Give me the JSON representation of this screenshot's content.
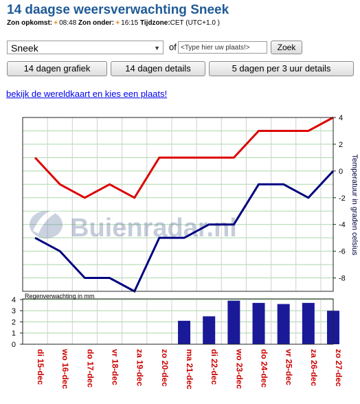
{
  "page": {
    "title": "14 daagse weersverwachting Sneek",
    "sun": {
      "rise_label": "Zon opkomst:",
      "rise_time": "08:48",
      "set_label": "Zon onder:",
      "set_time": "16:15",
      "tz_label": "Tijdzone:",
      "tz_value": "CET (UTC+1.0 )"
    }
  },
  "search": {
    "location": "Sneek",
    "of_label": "of",
    "placeholder": "<Type hier uw plaats!>",
    "button_label": "Zoek"
  },
  "tabs": [
    {
      "label": "14 dagen grafiek"
    },
    {
      "label": "14 dagen details"
    },
    {
      "label": "5 dagen per 3 uur details"
    }
  ],
  "map_link": "bekijk de wereldkaart en kies een plaats!",
  "watermark": "Buienradar.nl",
  "colors": {
    "max_line": "#dd0000",
    "min_line": "#000080",
    "bars": "#1a1a99",
    "date_labels": "#cc0000",
    "grid": "#a8d8a8",
    "title": "#1f5a96"
  },
  "chart_data": [
    {
      "type": "line",
      "ylabel": "Temperatuur in graden celsius",
      "ylim": [
        -9,
        4
      ],
      "yticks": [
        4,
        2,
        0,
        -2,
        -4,
        -6,
        -8
      ],
      "categories": [
        "di 15-dec",
        "wo 16-dec",
        "do 17-dec",
        "vr 18-dec",
        "za 19-dec",
        "zo 20-dec",
        "ma 21-dec",
        "di 22-dec",
        "wo 23-dec",
        "do 24-dec",
        "vr 25-dec",
        "za 26-dec",
        "zo 27-dec"
      ],
      "series": [
        {
          "values": [
            1,
            -1,
            -2,
            -1,
            -2,
            1,
            1,
            1,
            1,
            3,
            3,
            3,
            4
          ]
        },
        {
          "values": [
            -5,
            -6,
            -8,
            -8,
            -9,
            -5,
            -5,
            -4,
            -4,
            -1,
            -1,
            -2,
            0
          ]
        }
      ],
      "grid": true
    },
    {
      "type": "bar",
      "title": "Regenverwachting in mm",
      "ylim": [
        0,
        4
      ],
      "yticks": [
        4,
        3,
        2,
        1,
        0
      ],
      "categories": [
        "di 15-dec",
        "wo 16-dec",
        "do 17-dec",
        "vr 18-dec",
        "za 19-dec",
        "zo 20-dec",
        "ma 21-dec",
        "di 22-dec",
        "wo 23-dec",
        "do 24-dec",
        "vr 25-dec",
        "za 26-dec",
        "zo 27-dec"
      ],
      "values": [
        0,
        0,
        0,
        0,
        0,
        0,
        2.1,
        2.5,
        3.9,
        3.7,
        3.6,
        3.7,
        3.0
      ],
      "grid": true
    }
  ]
}
